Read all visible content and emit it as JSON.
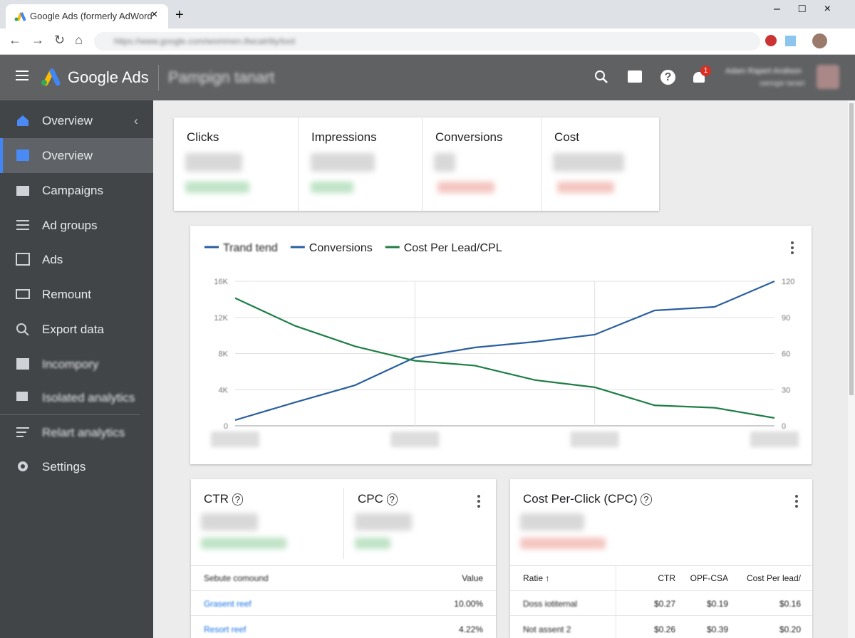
{
  "browser": {
    "tab_title": "Google Ads (formerly AdWord",
    "url": "https://www.google.com/wommen.ifwcatrlity/tool"
  },
  "header": {
    "brand": "Google Ads",
    "campaign": "Pampign tanart",
    "notifications": "1",
    "user_name": "Adam Rapert Andison",
    "user_sub": "sanngie tanart"
  },
  "sidebar": {
    "items": [
      "Overview",
      "Overview",
      "Campaigns",
      "Ad groups",
      "Ads",
      "Remount",
      "Export data",
      "Incompory",
      "Isolated analytics",
      "Relart analytics",
      "Settings"
    ]
  },
  "kpis": {
    "labels": [
      "Clicks",
      "Impressions",
      "Conversions",
      "Cost"
    ]
  },
  "chart_data": {
    "type": "line",
    "categories": [
      null,
      null,
      null,
      null,
      null,
      null,
      null,
      null,
      null,
      null
    ],
    "series": [
      {
        "name": "Trand tend",
        "color": "#2a5f9e"
      },
      {
        "name": "Conversions",
        "color": "#2a5f9e",
        "values": [
          630,
          2600,
          4490,
          7570,
          8670,
          9300,
          10090,
          12770,
          13160,
          16000
        ]
      },
      {
        "name": "Cost Per Lead/CPL",
        "color": "#1e7e45",
        "axis": "y2",
        "values": [
          106,
          83,
          66,
          54,
          50,
          38,
          32,
          17,
          15,
          6.5
        ]
      }
    ],
    "ylim": [
      0,
      16000
    ],
    "yticks": [
      0,
      {
        "value": 4000,
        "label": "4K"
      },
      {
        "value": 8000,
        "label": "8K"
      },
      {
        "value": 12000,
        "label": "12K"
      },
      {
        "value": 16000,
        "label": "16K"
      }
    ],
    "y2lim": [
      0,
      120
    ],
    "y2ticks": [
      0,
      30,
      60,
      90,
      120
    ],
    "grid": true
  },
  "ctr_card": {
    "ctr": "CTR",
    "cpc": "CPC",
    "table": {
      "header": [
        "Sebute comound",
        "Value"
      ],
      "rows": [
        [
          "Grasent reef",
          "10.00%"
        ],
        [
          "Resort reef",
          "4.22%"
        ]
      ]
    }
  },
  "cpc_card": {
    "title": "Cost Per-Click (CPC)",
    "table": {
      "header": [
        "Ratie",
        "CTR",
        "OPF-CSA",
        "Cost Per lead/"
      ],
      "rows": [
        [
          "Doss iotiternal",
          "$0.27",
          "$0.19",
          "$0.16"
        ],
        [
          "Not assent 2",
          "$0.26",
          "$0.39",
          "$0.20"
        ]
      ]
    }
  }
}
